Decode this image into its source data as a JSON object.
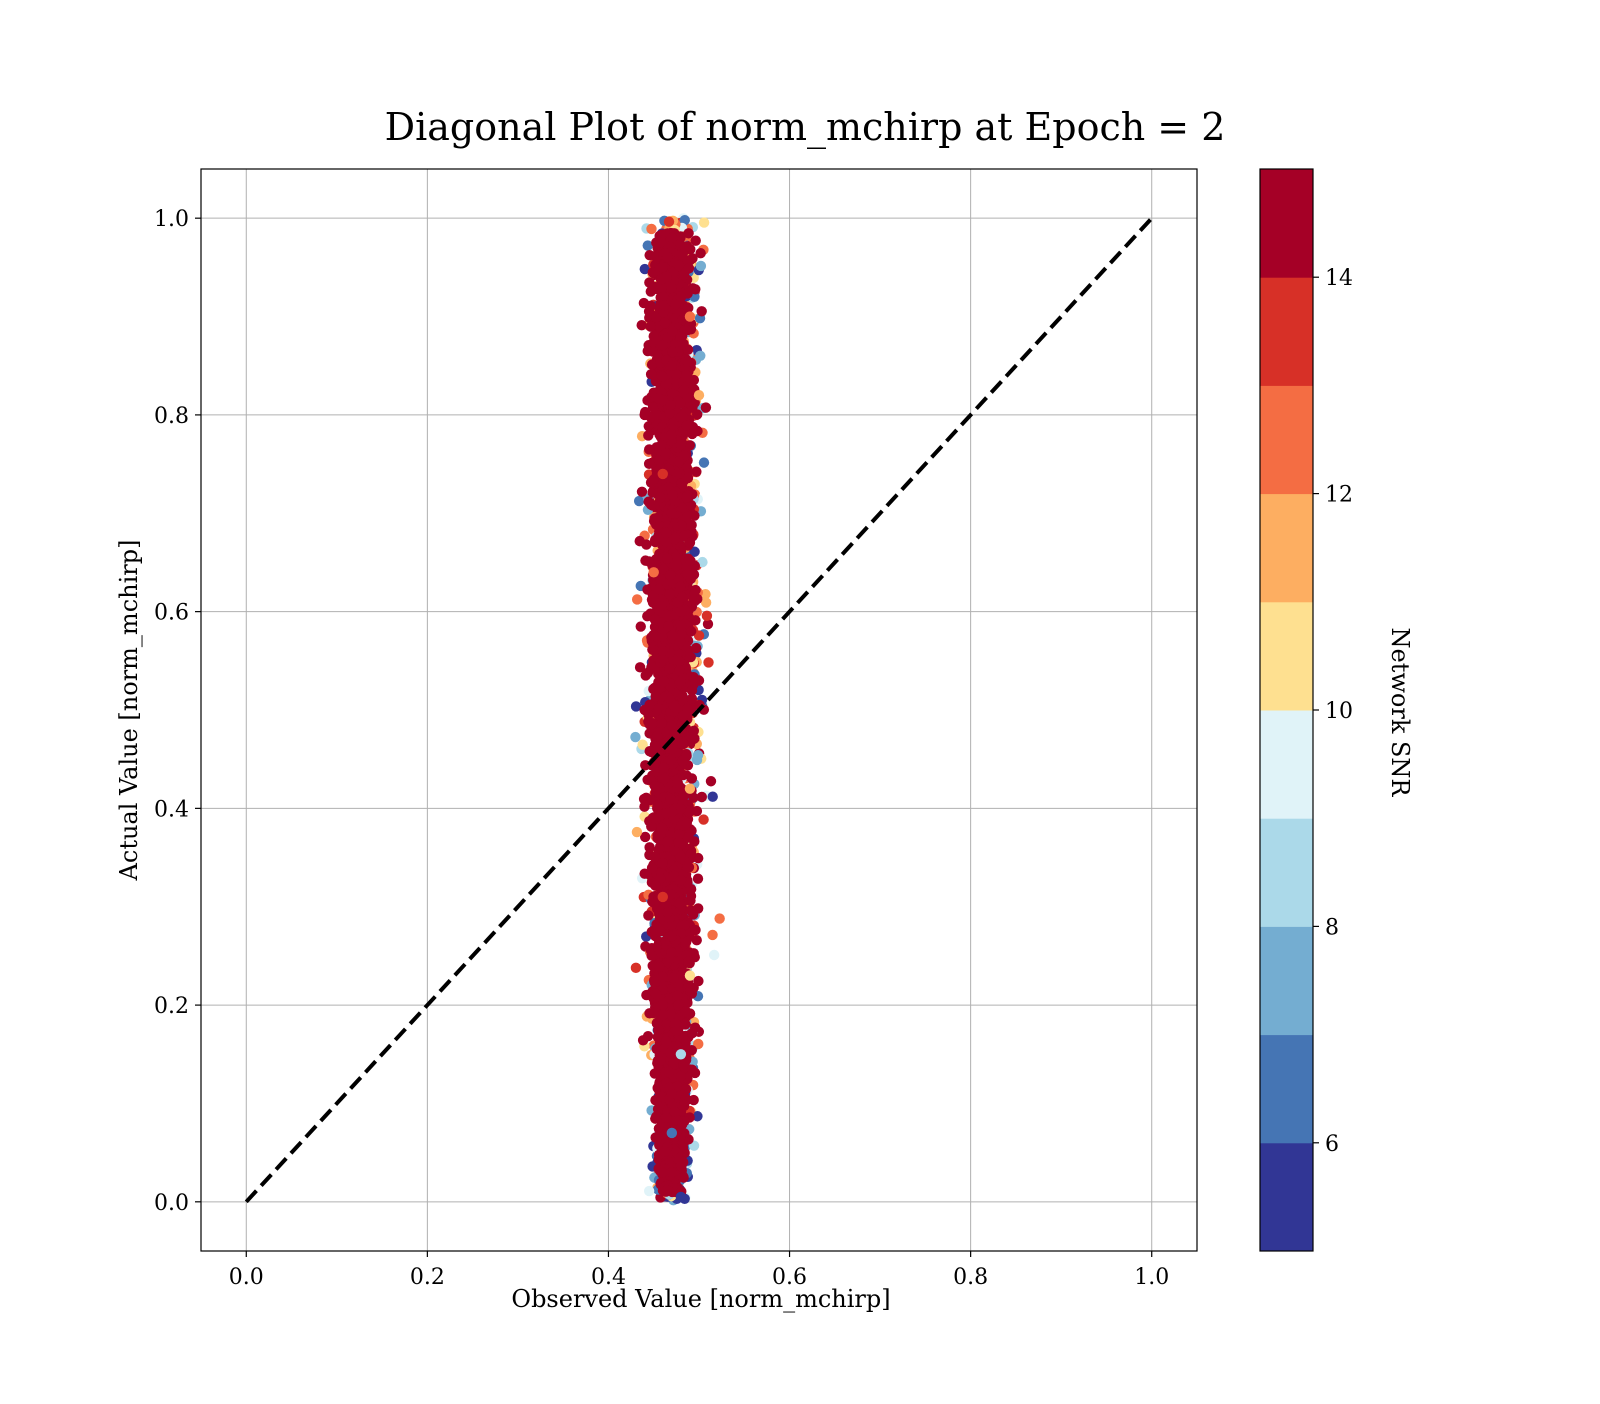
{
  "chart_data": {
    "type": "scatter",
    "title": "Diagonal Plot of norm_mchirp at Epoch = 2",
    "xlabel": "Observed Value [norm_mchirp]",
    "ylabel": "Actual Value [norm_mchirp]",
    "xlim": [
      -0.05,
      1.05
    ],
    "ylim": [
      -0.05,
      1.05
    ],
    "xticks": [
      0.0,
      0.2,
      0.4,
      0.6,
      0.8,
      1.0
    ],
    "yticks": [
      0.0,
      0.2,
      0.4,
      0.6,
      0.8,
      1.0
    ],
    "xtick_labels": [
      "0.0",
      "0.2",
      "0.4",
      "0.6",
      "0.8",
      "1.0"
    ],
    "ytick_labels": [
      "0.0",
      "0.2",
      "0.4",
      "0.6",
      "0.8",
      "1.0"
    ],
    "grid": true,
    "reference_line": {
      "x": [
        0.0,
        1.0
      ],
      "y": [
        0.0,
        1.0
      ],
      "style": "dashed",
      "color": "#000000"
    },
    "colorbar": {
      "label": "Network SNR",
      "range": [
        5,
        15
      ],
      "ticks": [
        6,
        8,
        10,
        12,
        14
      ],
      "tick_labels": [
        "6",
        "8",
        "10",
        "12",
        "14"
      ],
      "colors": [
        "#313695",
        "#4575b4",
        "#74add1",
        "#abd9e9",
        "#e0f3f8",
        "#fee090",
        "#fdae61",
        "#f46d43",
        "#d73027",
        "#a50026"
      ]
    },
    "cluster": {
      "x_center": 0.47,
      "x_spread": 0.02,
      "y_range": [
        0.0,
        1.0
      ],
      "dominant_snr": 15,
      "dominant_color": "#a50026"
    },
    "points": [
      {
        "x": 0.47,
        "y": 0.98,
        "snr": 15
      },
      {
        "x": 0.46,
        "y": 0.95,
        "snr": 15
      },
      {
        "x": 0.48,
        "y": 0.92,
        "snr": 15
      },
      {
        "x": 0.49,
        "y": 0.9,
        "snr": 12
      },
      {
        "x": 0.45,
        "y": 0.88,
        "snr": 14
      },
      {
        "x": 0.47,
        "y": 0.85,
        "snr": 15
      },
      {
        "x": 0.5,
        "y": 0.82,
        "snr": 11
      },
      {
        "x": 0.44,
        "y": 0.8,
        "snr": 15
      },
      {
        "x": 0.48,
        "y": 0.77,
        "snr": 15
      },
      {
        "x": 0.46,
        "y": 0.74,
        "snr": 13
      },
      {
        "x": 0.47,
        "y": 0.7,
        "snr": 15
      },
      {
        "x": 0.49,
        "y": 0.67,
        "snr": 15
      },
      {
        "x": 0.45,
        "y": 0.64,
        "snr": 12
      },
      {
        "x": 0.48,
        "y": 0.6,
        "snr": 15
      },
      {
        "x": 0.46,
        "y": 0.56,
        "snr": 15
      },
      {
        "x": 0.5,
        "y": 0.53,
        "snr": 14
      },
      {
        "x": 0.44,
        "y": 0.5,
        "snr": 15
      },
      {
        "x": 0.47,
        "y": 0.46,
        "snr": 15
      },
      {
        "x": 0.49,
        "y": 0.42,
        "snr": 11
      },
      {
        "x": 0.45,
        "y": 0.39,
        "snr": 15
      },
      {
        "x": 0.48,
        "y": 0.35,
        "snr": 15
      },
      {
        "x": 0.46,
        "y": 0.31,
        "snr": 13
      },
      {
        "x": 0.47,
        "y": 0.27,
        "snr": 15
      },
      {
        "x": 0.49,
        "y": 0.23,
        "snr": 10
      },
      {
        "x": 0.46,
        "y": 0.19,
        "snr": 15
      },
      {
        "x": 0.48,
        "y": 0.15,
        "snr": 8
      },
      {
        "x": 0.47,
        "y": 0.11,
        "snr": 15
      },
      {
        "x": 0.47,
        "y": 0.07,
        "snr": 6
      },
      {
        "x": 0.47,
        "y": 0.03,
        "snr": 15
      },
      {
        "x": 0.48,
        "y": 0.005,
        "snr": 5
      }
    ]
  }
}
